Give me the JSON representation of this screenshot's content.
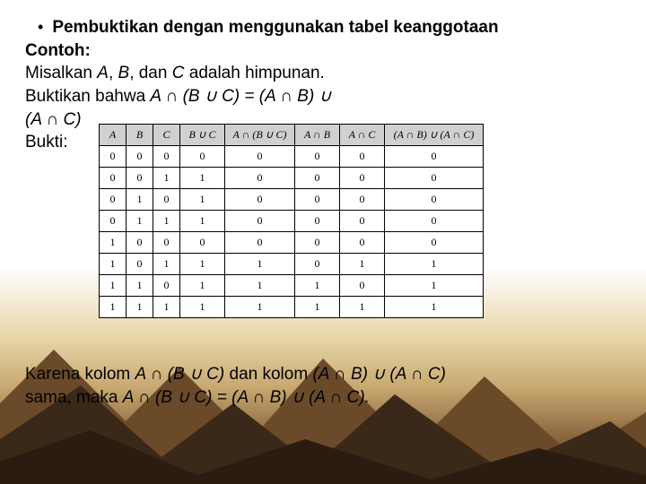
{
  "slide": {
    "bullet_glyph": "•",
    "line1": "Pembuktikan dengan menggunakan tabel keanggotaan",
    "line2": "Contoh:",
    "line3_pre": "Misalkan ",
    "line3_A": "A",
    "line3_sep1": ", ",
    "line3_B": "B",
    "line3_sep2": ", dan ",
    "line3_C": "C",
    "line3_post": " adalah himpunan.",
    "line4_pre": "Buktikan bahwa ",
    "line4_expr": "A ∩ (B ∪ C) = (A ∩ B) ∪",
    "line5_expr": "(A ∩ C)",
    "line6": "Bukti:",
    "conclusion_l1_pre": "Karena kolom ",
    "conclusion_l1_mid": "A ∩ (B ∪ C)",
    "conclusion_l1_mid2": " dan kolom ",
    "conclusion_l1_end": "(A ∩ B) ∪ (A ∩ C)",
    "conclusion_l2_pre": "sama, maka ",
    "conclusion_l2_expr": "A ∩ (B ∪ C) = (A ∩ B) ∪ (A ∩ C)."
  },
  "table": {
    "headers": [
      "A",
      "B",
      "C",
      "B ∪ C",
      "A ∩ (B ∪ C)",
      "A ∩ B",
      "A ∩ C",
      "(A ∩ B) ∪ (A ∩ C)"
    ],
    "rows": [
      [
        "0",
        "0",
        "0",
        "0",
        "0",
        "0",
        "0",
        "0"
      ],
      [
        "0",
        "0",
        "1",
        "1",
        "0",
        "0",
        "0",
        "0"
      ],
      [
        "0",
        "1",
        "0",
        "1",
        "0",
        "0",
        "0",
        "0"
      ],
      [
        "0",
        "1",
        "1",
        "1",
        "0",
        "0",
        "0",
        "0"
      ],
      [
        "1",
        "0",
        "0",
        "0",
        "0",
        "0",
        "0",
        "0"
      ],
      [
        "1",
        "0",
        "1",
        "1",
        "1",
        "0",
        "1",
        "1"
      ],
      [
        "1",
        "1",
        "0",
        "1",
        "1",
        "1",
        "0",
        "1"
      ],
      [
        "1",
        "1",
        "1",
        "1",
        "1",
        "1",
        "1",
        "1"
      ]
    ],
    "header_bg": "#d0d0d0",
    "border_color": "#000000",
    "cell_bg": "#ffffff"
  },
  "colors": {
    "text": "#000000",
    "bg_top": "#ffffff",
    "bg_sand": "#e8d5a8",
    "bg_brown": "#8b6840",
    "bg_dark": "#5a4028",
    "mountain_dark": "#3a2818",
    "mountain_mid": "#6b4a2a",
    "mountain_light": "#9a7548"
  }
}
